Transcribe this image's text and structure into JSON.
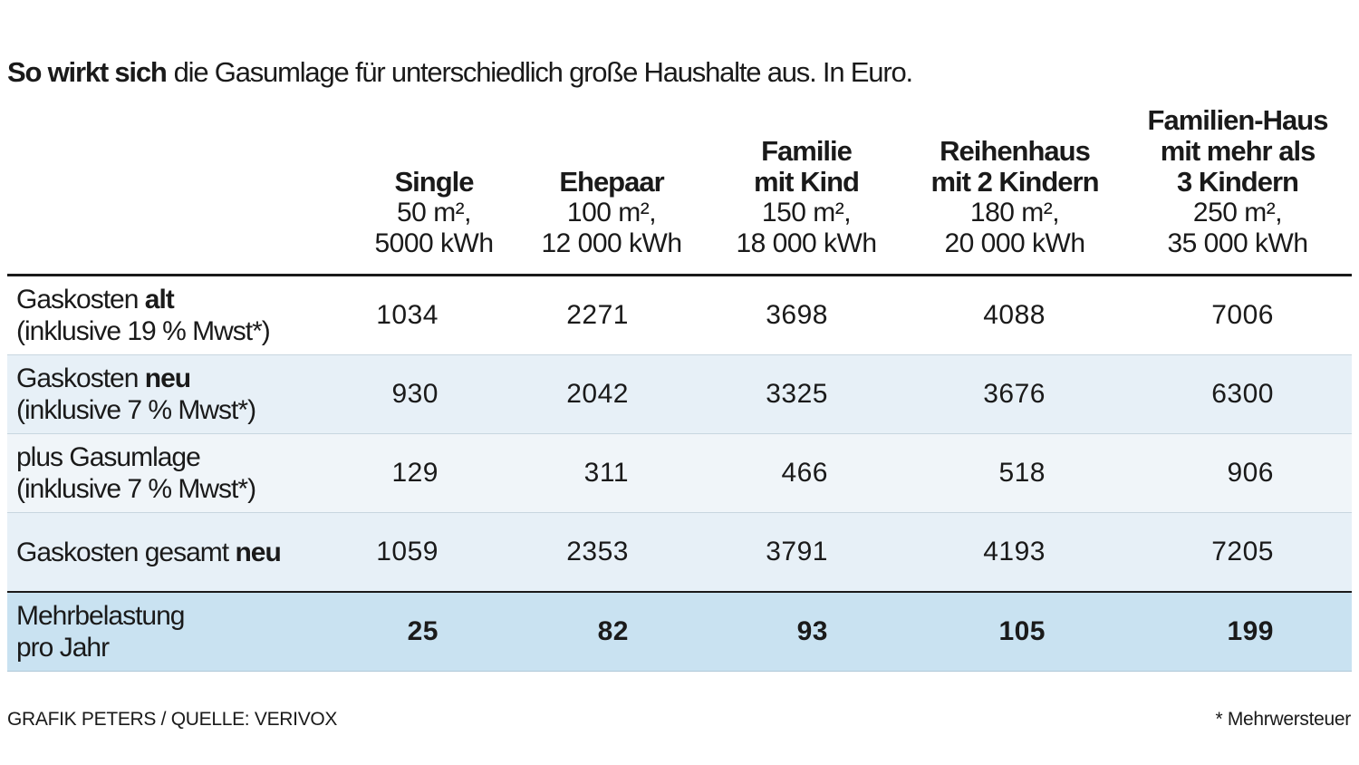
{
  "title": {
    "bold": "So wirkt sich",
    "rest": "die Gasumlage für unterschiedlich große Haushalte aus. In Euro."
  },
  "table": {
    "columns": [
      {
        "name": [
          "Single"
        ],
        "sub": [
          "50 m²,",
          "5000 kWh"
        ]
      },
      {
        "name": [
          "Ehepaar"
        ],
        "sub": [
          "100 m²,",
          "12 000 kWh"
        ]
      },
      {
        "name": [
          "Familie",
          "mit Kind"
        ],
        "sub": [
          "150 m²,",
          "18 000 kWh"
        ]
      },
      {
        "name": [
          "Reihenhaus",
          "mit 2 Kindern"
        ],
        "sub": [
          "180 m²,",
          "20 000 kWh"
        ]
      },
      {
        "name": [
          "Familien-Haus",
          "mit mehr als",
          "3 Kindern"
        ],
        "sub": [
          "250 m²,",
          "35 000 kWh"
        ]
      }
    ],
    "rows": [
      {
        "label": [
          [
            {
              "text": "Gaskosten"
            },
            {
              "text": "alt",
              "bold": true
            }
          ],
          [
            {
              "text": "(inklusive 19 % Mwst*)"
            }
          ]
        ],
        "values": [
          1034,
          2271,
          3698,
          4088,
          7006
        ]
      },
      {
        "label": [
          [
            {
              "text": "Gaskosten"
            },
            {
              "text": "neu",
              "bold": true
            }
          ],
          [
            {
              "text": "(inklusive 7 % Mwst*)"
            }
          ]
        ],
        "values": [
          930,
          2042,
          3325,
          3676,
          6300
        ]
      },
      {
        "label": [
          [
            {
              "text": "plus Gasumlage"
            }
          ],
          [
            {
              "text": "(inklusive 7 % Mwst*)"
            }
          ]
        ],
        "values": [
          129,
          311,
          466,
          518,
          906
        ]
      },
      {
        "label": [
          [
            {
              "text": "Gaskosten gesamt"
            },
            {
              "text": "neu",
              "bold": true
            }
          ]
        ],
        "values": [
          1059,
          2353,
          3791,
          4193,
          7205
        ]
      },
      {
        "label": [
          [
            {
              "text": "Mehrbelastung"
            }
          ],
          [
            {
              "text": "pro Jahr"
            }
          ]
        ],
        "values": [
          25,
          82,
          93,
          105,
          199
        ],
        "bold": true
      }
    ]
  },
  "footer": {
    "source": "GRAFIK PETERS / QUELLE: VERIVOX",
    "note": "* Mehrwersteuer"
  }
}
